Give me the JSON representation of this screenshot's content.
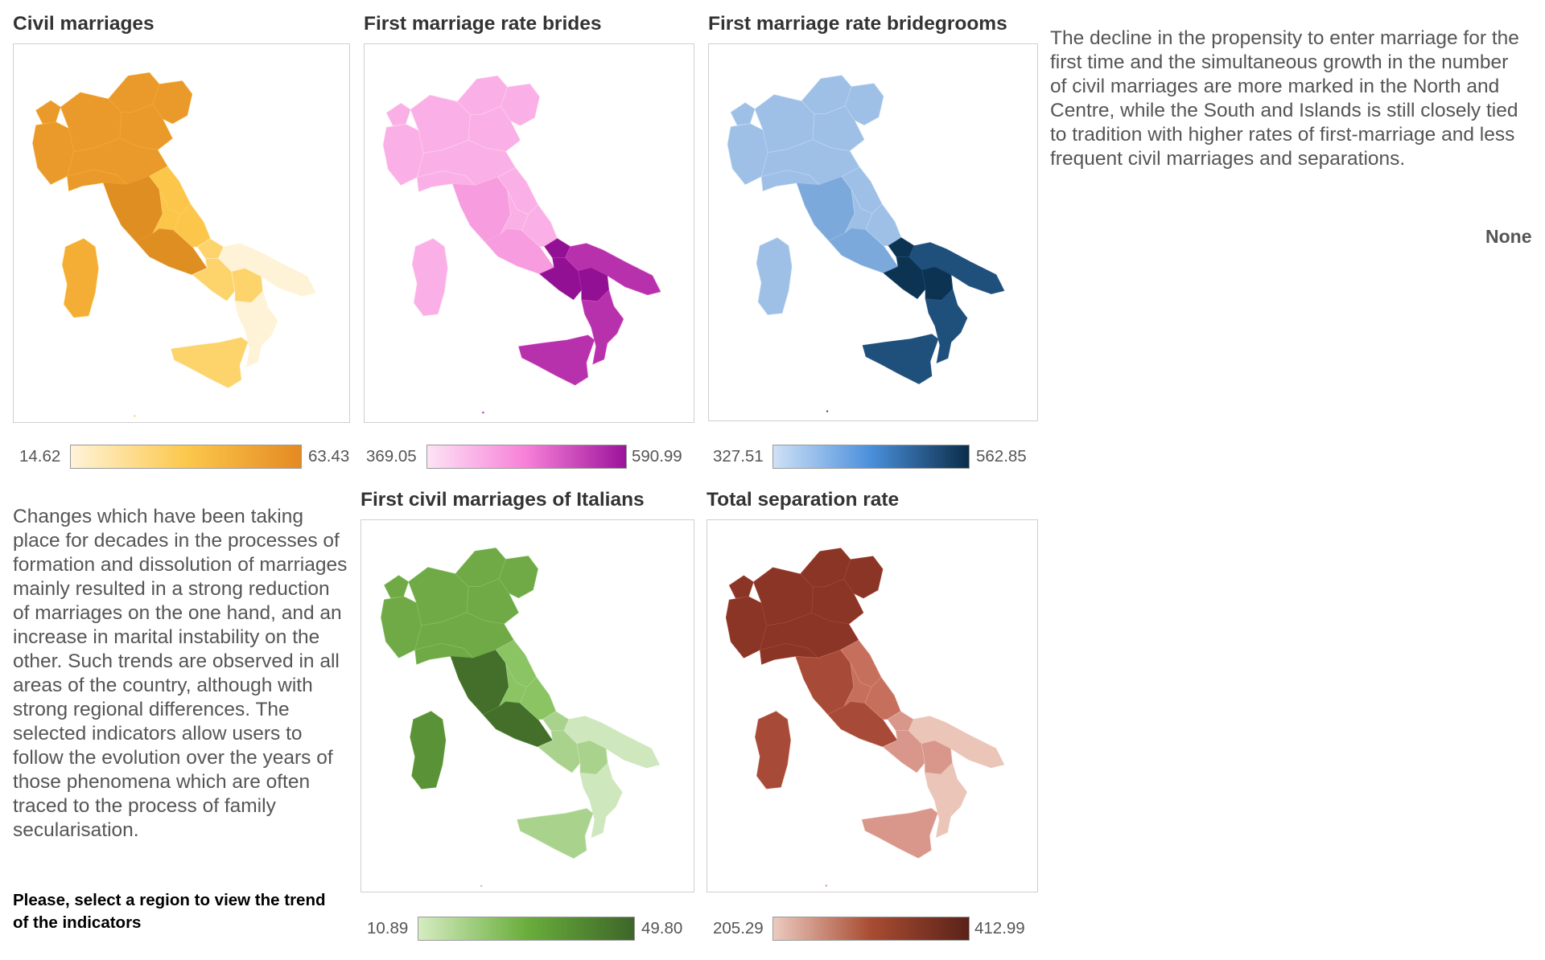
{
  "panels": [
    {
      "id": "civil",
      "title": "Civil marriages",
      "legend_min": "14.62",
      "legend_max": "63.43",
      "colors": [
        "#fef3d6",
        "#fdd36b",
        "#fcc64a",
        "#f4ad35",
        "#e99a2b",
        "#df8e22"
      ],
      "gradient": [
        "#fff3d8",
        "#fcc84c",
        "#e48a22"
      ],
      "levels": {
        "north": 4,
        "center": 5,
        "centerEast": 2,
        "south": 1,
        "southEast": 0,
        "sicily": 1,
        "sardinia": 3
      }
    },
    {
      "id": "brides",
      "title": "First marriage rate brides",
      "legend_min": "369.05",
      "legend_max": "590.99",
      "colors": [
        "#fcd3ef",
        "#fab0e6",
        "#f79cde",
        "#d84cc0",
        "#b731ad",
        "#921093"
      ],
      "gradient": [
        "#fde3f5",
        "#f77fd8",
        "#9b139b"
      ],
      "levels": {
        "north": 1,
        "center": 2,
        "centerEast": 1,
        "south": 5,
        "southEast": 4,
        "sicily": 4,
        "sardinia": 1
      }
    },
    {
      "id": "grooms",
      "title": "First marriage rate bridegrooms",
      "legend_min": "327.51",
      "legend_max": "562.85",
      "colors": [
        "#c3d8ef",
        "#9ec0e7",
        "#7ca9dc",
        "#2b5c8c",
        "#1f4f7b",
        "#0c3351"
      ],
      "gradient": [
        "#cfe1f6",
        "#4a8fdb",
        "#0b2d49"
      ],
      "levels": {
        "north": 1,
        "center": 2,
        "centerEast": 1,
        "south": 5,
        "southEast": 4,
        "sicily": 4,
        "sardinia": 1
      }
    },
    {
      "id": "italians",
      "title": "First civil marriages of Italians",
      "legend_min": "10.89",
      "legend_max": "49.80",
      "colors": [
        "#cfe7bd",
        "#a9d28c",
        "#8bc463",
        "#6faa47",
        "#5a9238",
        "#436f2b"
      ],
      "gradient": [
        "#d5ecc1",
        "#6aae3c",
        "#3d6628"
      ],
      "levels": {
        "north": 3,
        "center": 5,
        "centerEast": 2,
        "south": 1,
        "southEast": 0,
        "sicily": 1,
        "sardinia": 4
      }
    },
    {
      "id": "separation",
      "title": "Total separation rate",
      "legend_min": "205.29",
      "legend_max": "412.99",
      "colors": [
        "#ecc5b9",
        "#d9968a",
        "#c66f5c",
        "#a84a38",
        "#8b3527",
        "#5e2017"
      ],
      "gradient": [
        "#eccabf",
        "#a84c32",
        "#5b2219"
      ],
      "levels": {
        "north": 4,
        "center": 3,
        "centerEast": 2,
        "south": 1,
        "southEast": 0,
        "sicily": 1,
        "sardinia": 3
      }
    }
  ],
  "text": {
    "right_paragraph": "The decline in the propensity to enter marriage for the first time and the simultaneous growth in the number of civil marriages are more marked in the North and Centre, while the South and Islands is still closely tied to tradition with higher rates of first-marriage and less frequent civil marriages and separations.",
    "none_label": "None",
    "left_paragraph": "Changes which have been taking place for decades in the processes of formation and dissolution of marriages mainly resulted in a strong reduction of marriages on the one hand, and an increase in marital instability on the other. Such trends are observed in all areas of the country, although with strong regional differences. The selected indicators allow users to follow the evolution over the years of those phenomena which are often traced to the process of family secularisation.",
    "select_note": "Please, select a region to view the trend of the indicators"
  }
}
